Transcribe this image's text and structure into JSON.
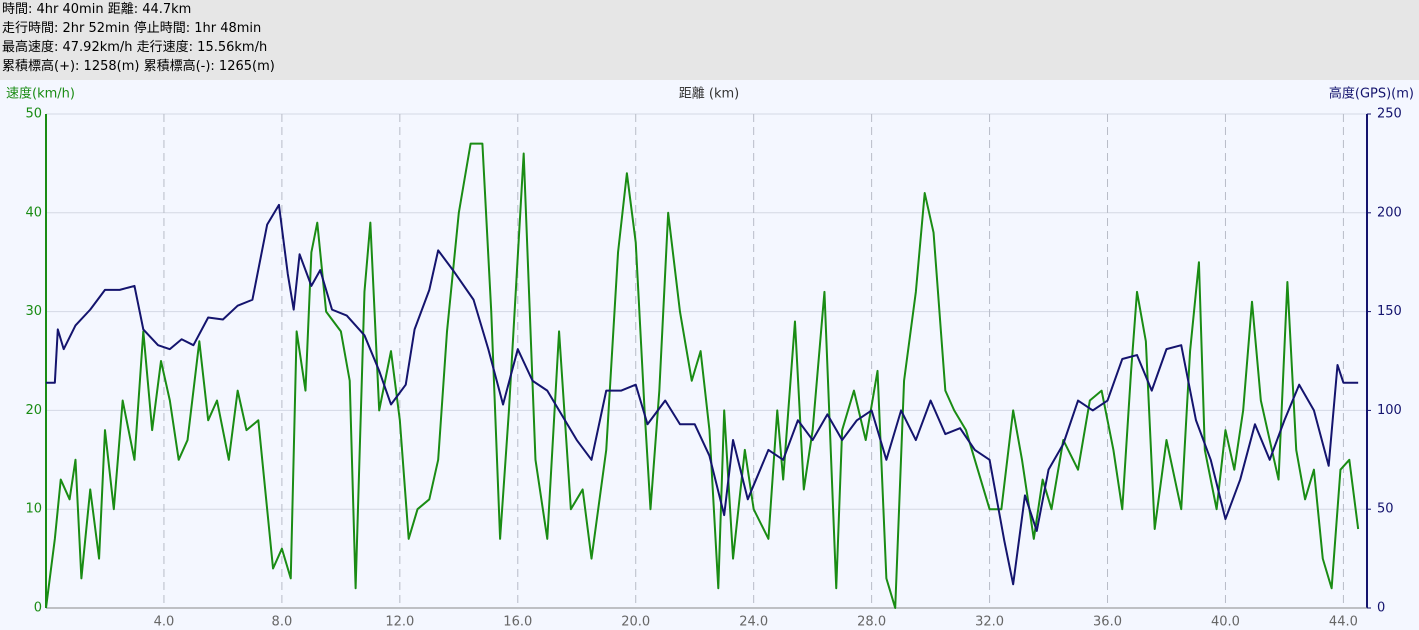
{
  "chart_data": {
    "type": "line",
    "info_lines": [
      "時間: 4hr 40min 距離: 44.7km",
      "走行時間: 2hr 52min 停止時間: 1hr 48min",
      "最高速度: 47.92km/h 走行速度: 15.56km/h",
      "累積標高(+): 1258(m) 累積標高(-): 1265(m)"
    ],
    "x_label": "距離 (km)",
    "y_label": "速度(km/h)",
    "y2_label": "高度(GPS)(m)",
    "xlim": [
      0,
      44.8
    ],
    "xticks": [
      {
        "value": 4,
        "label": "4.0"
      },
      {
        "value": 8,
        "label": "8.0"
      },
      {
        "value": 12,
        "label": "12.0"
      },
      {
        "value": 16,
        "label": "16.0"
      },
      {
        "value": 20,
        "label": "20.0"
      },
      {
        "value": 24,
        "label": "24.0"
      },
      {
        "value": 28,
        "label": "28.0"
      },
      {
        "value": 32,
        "label": "32.0"
      },
      {
        "value": 36,
        "label": "36.0"
      },
      {
        "value": 40,
        "label": "40.0"
      },
      {
        "value": 44,
        "label": "44.0"
      }
    ],
    "ylim": [
      0,
      50
    ],
    "yticks": [
      0,
      10,
      20,
      30,
      40,
      50
    ],
    "y2lim": [
      0,
      250
    ],
    "y2ticks": [
      0,
      50,
      100,
      150,
      200,
      250
    ],
    "grid": true,
    "series": [
      {
        "color": "#1a8c14",
        "axis": "y",
        "x": [
          0,
          0.3,
          0.5,
          0.8,
          1.0,
          1.2,
          1.5,
          1.8,
          2.0,
          2.3,
          2.6,
          3.0,
          3.3,
          3.6,
          3.9,
          4.2,
          4.5,
          4.8,
          5.2,
          5.5,
          5.8,
          6.2,
          6.5,
          6.8,
          7.2,
          7.5,
          7.7,
          8.0,
          8.3,
          8.5,
          8.8,
          9.0,
          9.2,
          9.5,
          10.0,
          10.3,
          10.5,
          10.8,
          11.0,
          11.3,
          11.7,
          12.0,
          12.3,
          12.6,
          13.0,
          13.3,
          13.6,
          14.0,
          14.4,
          14.8,
          15.1,
          15.4,
          15.7,
          16.2,
          16.6,
          17.0,
          17.4,
          17.8,
          18.2,
          18.5,
          19.0,
          19.4,
          19.7,
          20.0,
          20.3,
          20.5,
          20.8,
          21.1,
          21.5,
          21.9,
          22.2,
          22.5,
          22.8,
          23.0,
          23.3,
          23.7,
          24.0,
          24.5,
          24.8,
          25.0,
          25.4,
          25.7,
          26.0,
          26.4,
          26.8,
          27.0,
          27.4,
          27.8,
          28.2,
          28.5,
          28.8,
          29.1,
          29.5,
          29.8,
          30.1,
          30.5,
          30.8,
          31.2,
          31.6,
          32.0,
          32.4,
          32.8,
          33.1,
          33.5,
          33.8,
          34.1,
          34.5,
          35.0,
          35.4,
          35.8,
          36.2,
          36.5,
          36.8,
          37.0,
          37.3,
          37.6,
          38.0,
          38.5,
          38.8,
          39.1,
          39.3,
          39.7,
          40.0,
          40.3,
          40.6,
          40.9,
          41.2,
          41.5,
          41.8,
          42.1,
          42.4,
          42.7,
          43.0,
          43.3,
          43.6,
          43.9,
          44.2,
          44.5
        ],
        "values": [
          0,
          7,
          13,
          11,
          15,
          3,
          12,
          5,
          18,
          10,
          21,
          15,
          28,
          18,
          25,
          21,
          15,
          17,
          27,
          19,
          21,
          15,
          22,
          18,
          19,
          10,
          4,
          6,
          3,
          28,
          22,
          36,
          39,
          30,
          28,
          23,
          2,
          32,
          39,
          20,
          26,
          19,
          7,
          10,
          11,
          15,
          28,
          40,
          47,
          47,
          30,
          7,
          20,
          46,
          15,
          7,
          28,
          10,
          12,
          5,
          16,
          36,
          44,
          37,
          20,
          10,
          22,
          40,
          30,
          23,
          26,
          18,
          2,
          20,
          5,
          16,
          10,
          7,
          20,
          13,
          29,
          12,
          18,
          32,
          2,
          18,
          22,
          17,
          24,
          3,
          0,
          23,
          32,
          42,
          38,
          22,
          20,
          18,
          14,
          10,
          10,
          20,
          15,
          7,
          13,
          10,
          17,
          14,
          21,
          22,
          16,
          10,
          24,
          32,
          27,
          8,
          17,
          10,
          26,
          35,
          16,
          10,
          18,
          14,
          20,
          31,
          21,
          17,
          13,
          33,
          16,
          11,
          14,
          5,
          2,
          14,
          15,
          8
        ]
      },
      {
        "color": "#14146e",
        "axis": "y2",
        "x": [
          0,
          0.3,
          0.4,
          0.6,
          1.0,
          1.5,
          2.0,
          2.5,
          3.0,
          3.3,
          3.8,
          4.2,
          4.6,
          5.0,
          5.5,
          6.0,
          6.5,
          7.0,
          7.5,
          7.9,
          8.2,
          8.4,
          8.6,
          9.0,
          9.3,
          9.7,
          10.2,
          10.8,
          11.3,
          11.7,
          12.2,
          12.5,
          13.0,
          13.3,
          13.8,
          14.5,
          15.0,
          15.5,
          16.0,
          16.5,
          17.0,
          17.6,
          18.0,
          18.5,
          19.0,
          19.5,
          20.0,
          20.4,
          21.0,
          21.5,
          22.0,
          22.5,
          23.0,
          23.3,
          23.8,
          24.5,
          25.0,
          25.5,
          26.0,
          26.5,
          27.0,
          27.5,
          28.0,
          28.5,
          29.0,
          29.5,
          30.0,
          30.5,
          31.0,
          31.5,
          32.0,
          32.5,
          32.8,
          33.2,
          33.6,
          34.0,
          34.5,
          35.0,
          35.5,
          36.0,
          36.5,
          37.0,
          37.5,
          38.0,
          38.5,
          39.0,
          39.5,
          40.0,
          40.5,
          41.0,
          41.5,
          42.0,
          42.5,
          43.0,
          43.5,
          43.8,
          44.0,
          44.5
        ],
        "values": [
          114,
          114,
          141,
          131,
          143,
          151,
          161,
          161,
          163,
          141,
          133,
          131,
          136,
          133,
          147,
          146,
          153,
          156,
          194,
          204,
          169,
          151,
          179,
          163,
          171,
          151,
          148,
          138,
          120,
          103,
          113,
          141,
          161,
          181,
          171,
          156,
          131,
          103,
          131,
          115,
          110,
          95,
          85,
          75,
          110,
          110,
          113,
          93,
          105,
          93,
          93,
          77,
          47,
          85,
          55,
          80,
          75,
          95,
          85,
          98,
          85,
          95,
          100,
          75,
          100,
          85,
          105,
          88,
          91,
          80,
          75,
          34,
          12,
          57,
          39,
          70,
          83,
          105,
          100,
          105,
          126,
          128,
          110,
          131,
          133,
          95,
          75,
          45,
          65,
          93,
          75,
          95,
          113,
          100,
          72,
          123,
          114,
          114
        ]
      }
    ]
  }
}
